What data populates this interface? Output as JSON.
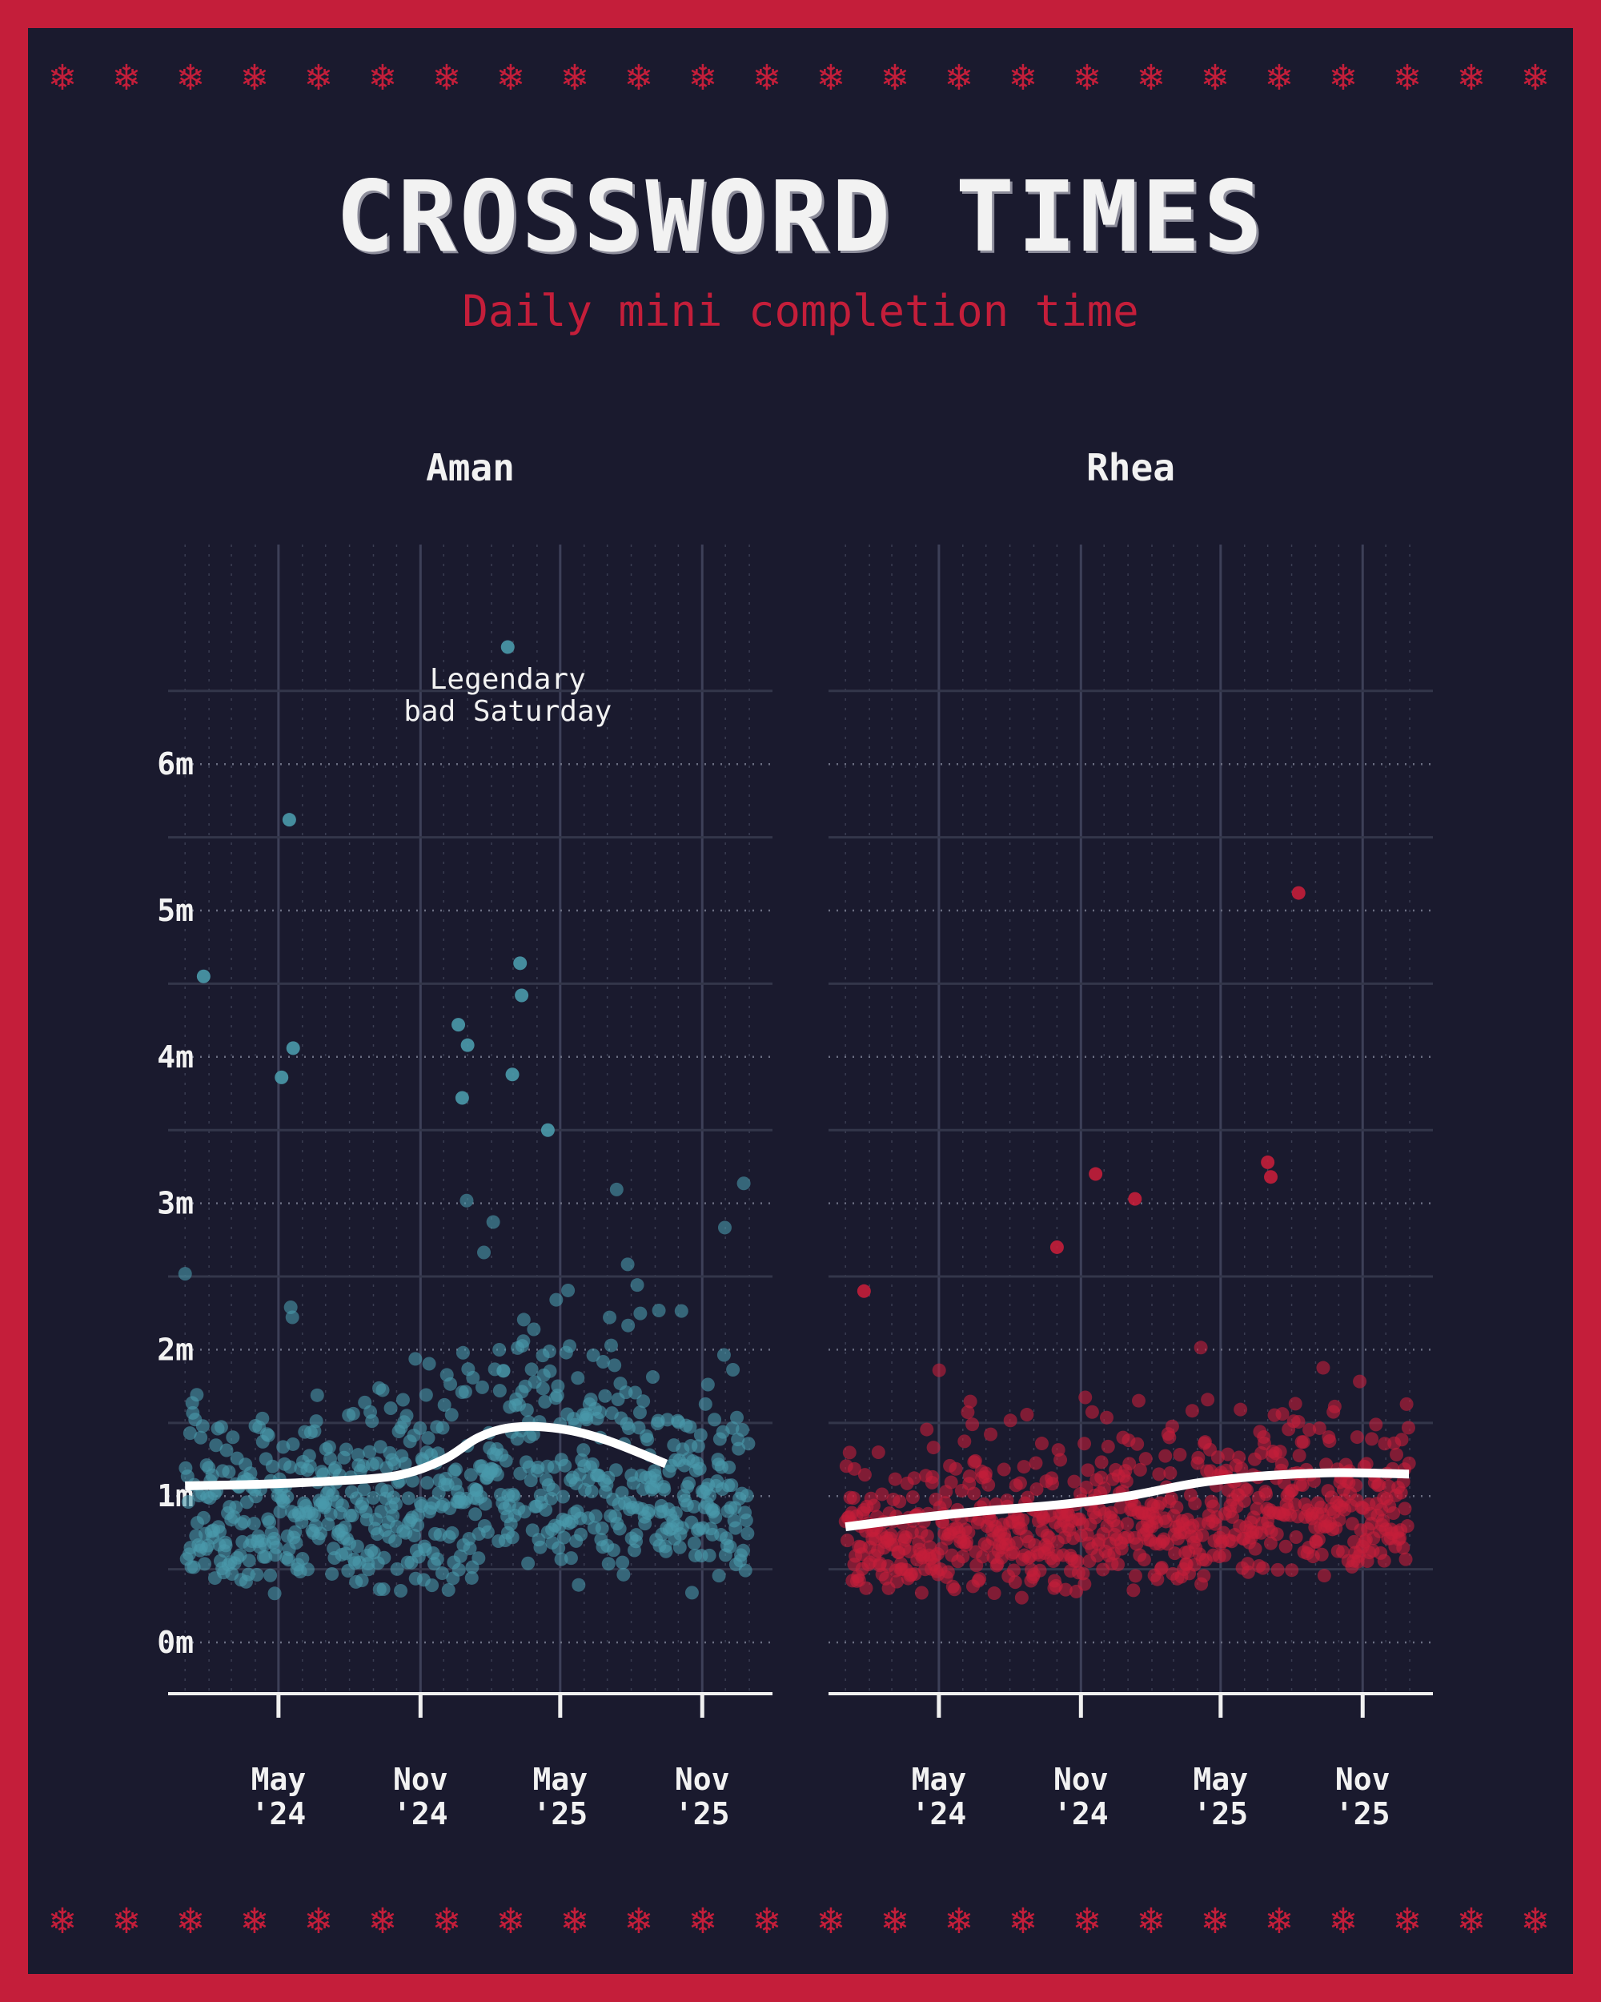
{
  "title": "CROSSWORD TIMES",
  "subtitle": "Daily mini completion time",
  "colors": {
    "background": "#1a1a2e",
    "border": "#c41e3a",
    "aman": "#4a9aab",
    "rhea": "#c41e3a",
    "trend": "#ffffff",
    "text": "#f2f2f2"
  },
  "decorations": {
    "snowflake_icons": [
      "snowflake-icon"
    ]
  },
  "chart_data": [
    {
      "type": "scatter",
      "panel_title": "Aman",
      "y_ticks": [
        "0m",
        "1m",
        "2m",
        "3m",
        "4m",
        "5m",
        "6m"
      ],
      "ylim": [
        -0.35,
        7.5
      ],
      "xlim": [
        "2023-12-10",
        "2026-01-31"
      ],
      "x_ticks": [
        {
          "value": "2024-05-01",
          "line1": "May",
          "line2": "'24"
        },
        {
          "value": "2024-11-01",
          "line1": "Nov",
          "line2": "'24"
        },
        {
          "value": "2025-05-01",
          "line1": "May",
          "line2": "'25"
        },
        {
          "value": "2025-11-01",
          "line1": "Nov",
          "line2": "'25"
        }
      ],
      "grid": true,
      "series": [
        {
          "points_summary": "about 700 daily times, mostly 0.3m–2.5m",
          "highlighted_points": [
            {
              "x": "2025-02-22",
              "y": 6.8
            },
            {
              "x": "2024-05-15",
              "y": 5.62
            },
            {
              "x": "2024-01-25",
              "y": 4.55
            },
            {
              "x": "2025-03-10",
              "y": 4.64
            },
            {
              "x": "2025-03-12",
              "y": 4.42
            },
            {
              "x": "2024-05-20",
              "y": 4.06
            },
            {
              "x": "2024-05-05",
              "y": 3.86
            },
            {
              "x": "2024-12-20",
              "y": 4.22
            },
            {
              "x": "2025-01-01",
              "y": 4.08
            },
            {
              "x": "2025-02-28",
              "y": 3.88
            },
            {
              "x": "2024-12-25",
              "y": 3.72
            },
            {
              "x": "2025-04-15",
              "y": 3.5
            }
          ]
        }
      ],
      "trend": {
        "x": [
          "2024-01-01",
          "2024-04-01",
          "2024-07-01",
          "2024-10-01",
          "2024-12-01",
          "2025-01-15",
          "2025-03-01",
          "2025-05-01",
          "2025-07-01",
          "2025-09-15"
        ],
        "y": [
          1.07,
          1.08,
          1.1,
          1.14,
          1.25,
          1.4,
          1.47,
          1.46,
          1.38,
          1.22
        ]
      },
      "annotation": {
        "lines": [
          "Legendary",
          "bad Saturday"
        ],
        "x": "2025-02-22",
        "y": 6.8
      }
    },
    {
      "type": "scatter",
      "panel_title": "Rhea",
      "y_ticks": [
        "0m",
        "1m",
        "2m",
        "3m",
        "4m",
        "5m",
        "6m"
      ],
      "ylim": [
        -0.35,
        7.5
      ],
      "xlim": [
        "2023-12-10",
        "2026-01-31"
      ],
      "x_ticks": [
        {
          "value": "2024-05-01",
          "line1": "May",
          "line2": "'24"
        },
        {
          "value": "2024-11-01",
          "line1": "Nov",
          "line2": "'24"
        },
        {
          "value": "2025-05-01",
          "line1": "May",
          "line2": "'25"
        },
        {
          "value": "2025-11-01",
          "line1": "Nov",
          "line2": "'25"
        }
      ],
      "grid": true,
      "series": [
        {
          "points_summary": "about 700 daily times, mostly 0.3m–2m",
          "highlighted_points": [
            {
              "x": "2025-08-10",
              "y": 5.12
            },
            {
              "x": "2025-07-01",
              "y": 3.28
            },
            {
              "x": "2025-07-05",
              "y": 3.18
            },
            {
              "x": "2024-11-20",
              "y": 3.2
            },
            {
              "x": "2025-01-10",
              "y": 3.03
            },
            {
              "x": "2024-10-01",
              "y": 2.7
            },
            {
              "x": "2024-01-25",
              "y": 2.4
            }
          ]
        }
      ],
      "trend": {
        "x": [
          "2024-01-01",
          "2024-04-01",
          "2024-07-01",
          "2024-10-01",
          "2025-01-01",
          "2025-04-01",
          "2025-07-01",
          "2025-10-01",
          "2025-12-31"
        ],
        "y": [
          0.79,
          0.85,
          0.9,
          0.94,
          1.0,
          1.09,
          1.14,
          1.16,
          1.15
        ]
      }
    }
  ]
}
